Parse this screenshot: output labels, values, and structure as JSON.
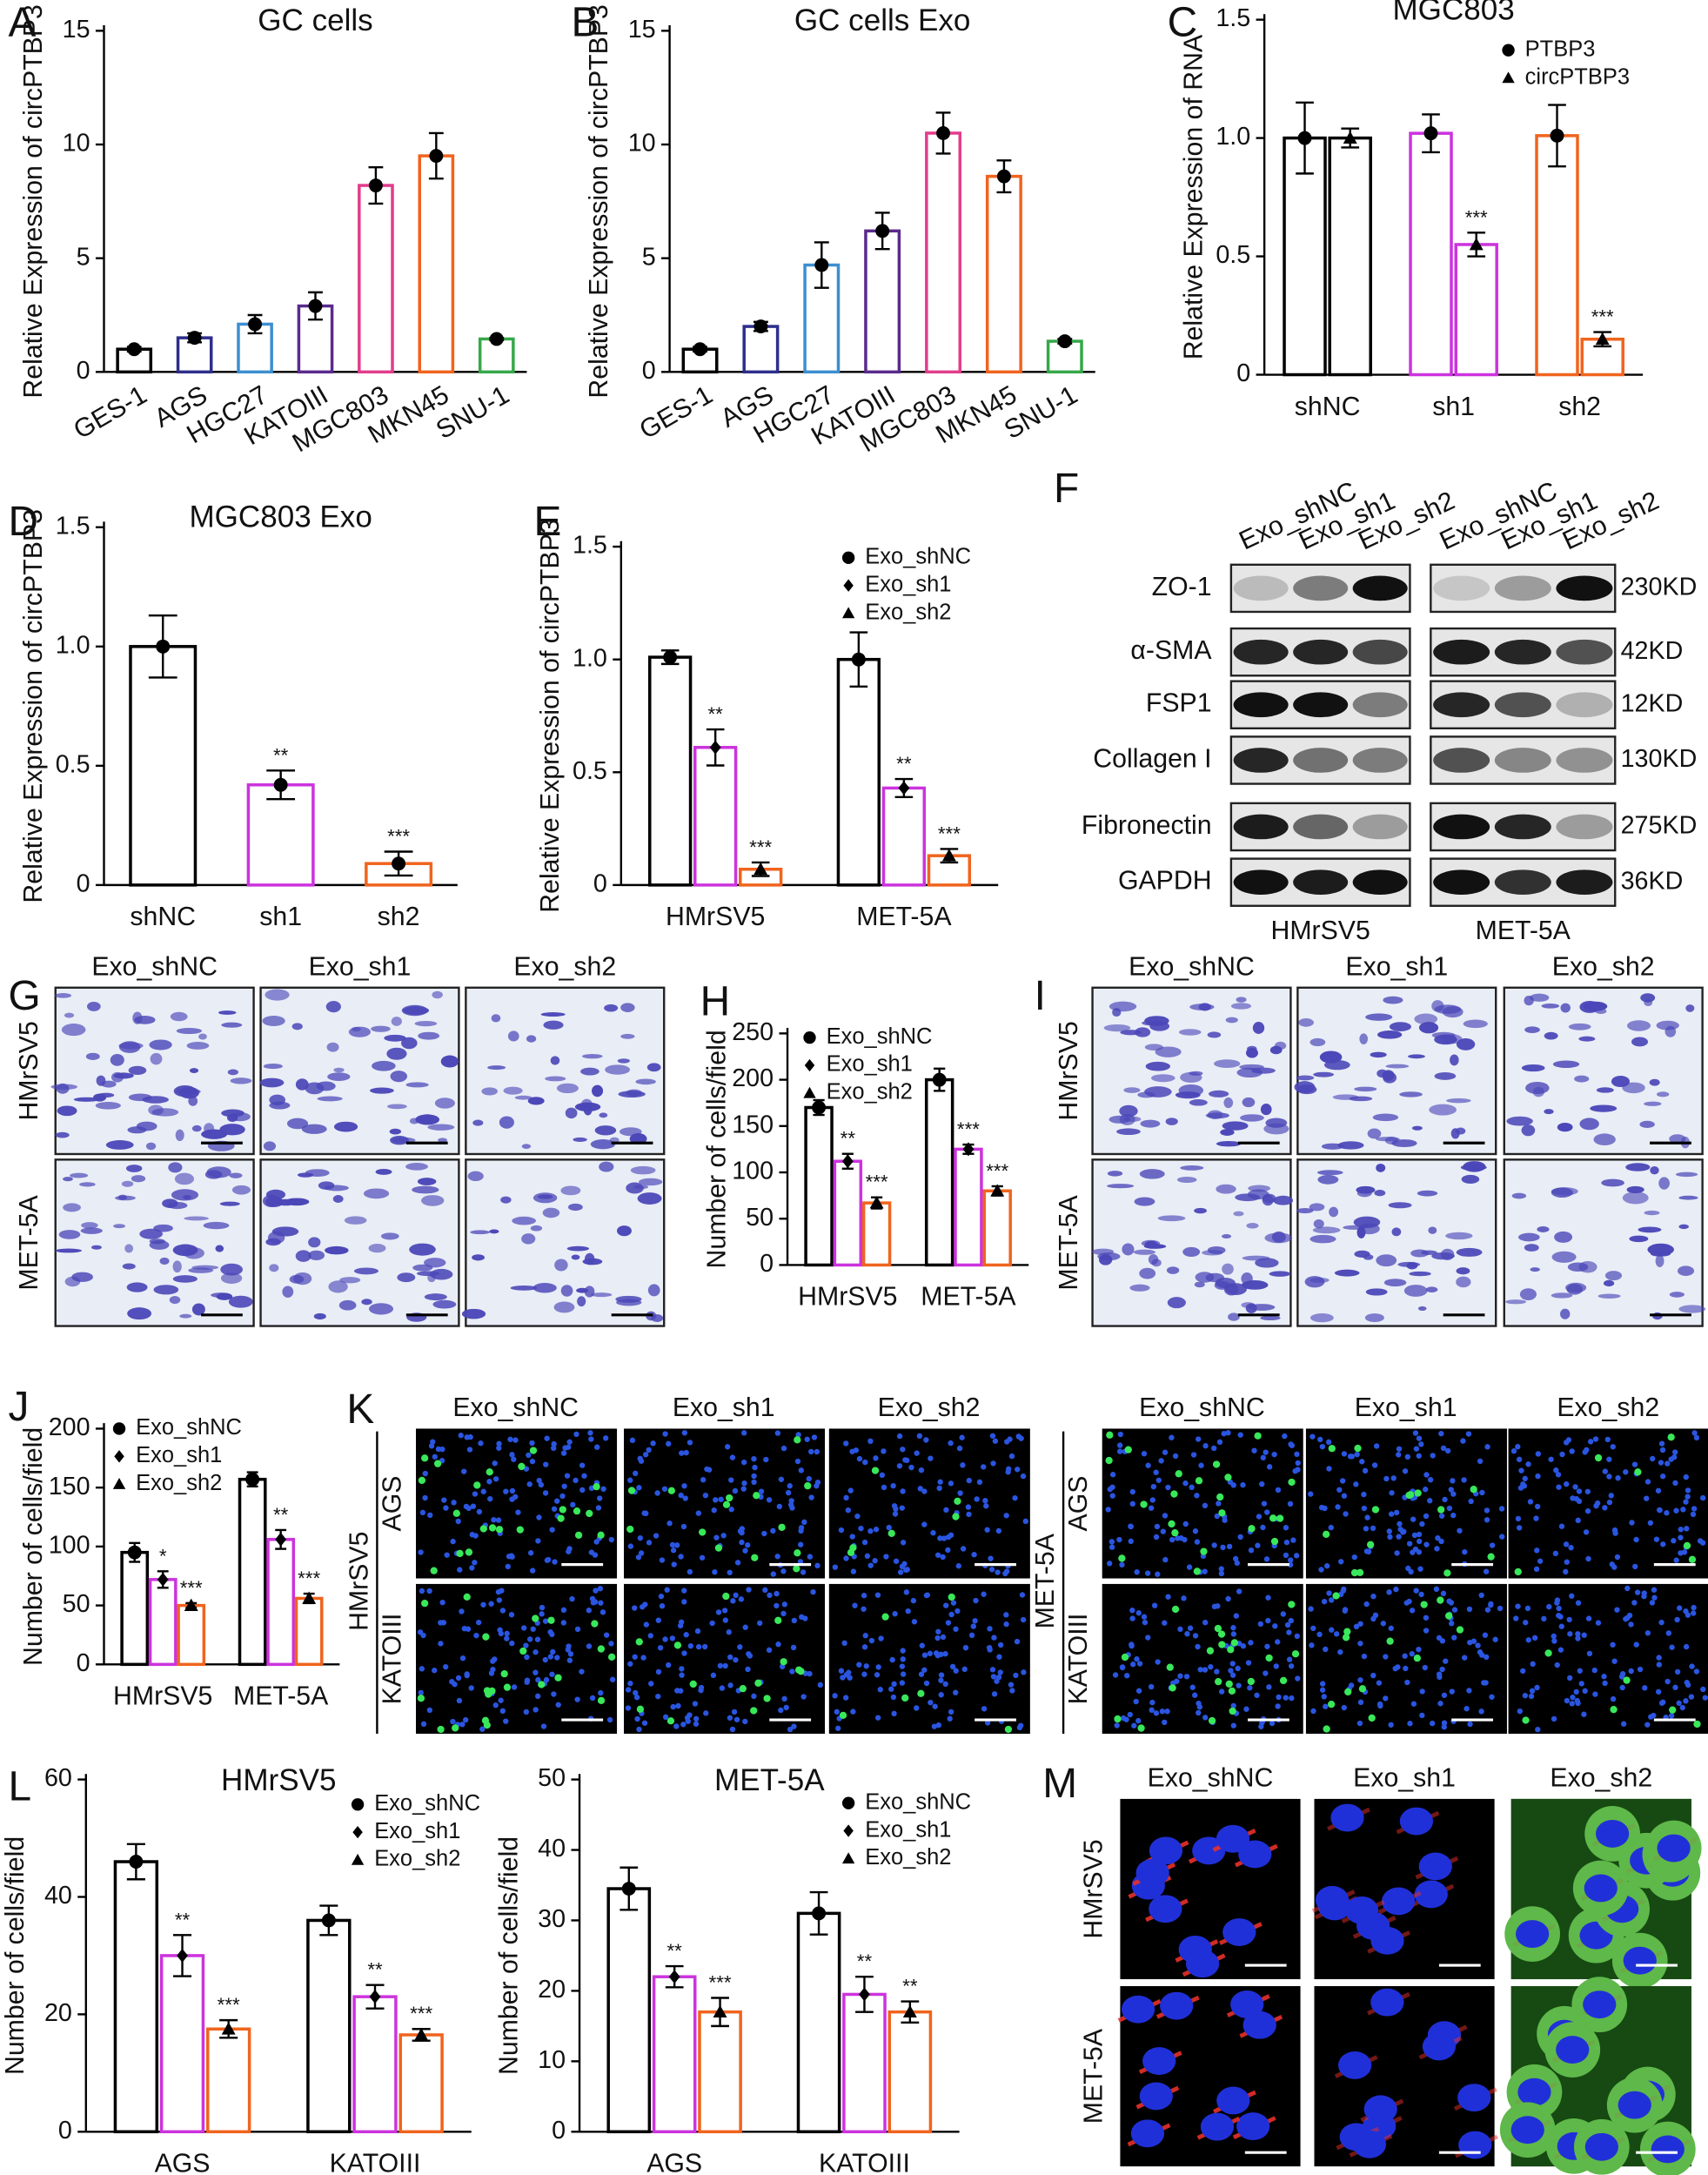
{
  "chart_data": [
    {
      "type": "bar",
      "panel": "A",
      "title": "GC cells",
      "ylabel": "Relative Expression of circPTBP3",
      "categories": [
        "GES-1",
        "AGS",
        "HGC27",
        "KATOIII",
        "MGC803",
        "MKN45",
        "SNU-1"
      ],
      "values": [
        1.0,
        1.5,
        2.1,
        2.9,
        8.2,
        9.5,
        1.45
      ],
      "errors": [
        0.1,
        0.2,
        0.4,
        0.6,
        0.8,
        1.0,
        0.05
      ],
      "colors": [
        "#000000",
        "#2e2e8c",
        "#3d8fd0",
        "#5a2a8c",
        "#e23d8c",
        "#f0641e",
        "#36a84a"
      ],
      "ylim": [
        0,
        15
      ],
      "yticks": [
        0,
        5,
        10,
        15
      ]
    },
    {
      "type": "bar",
      "panel": "B",
      "title": "GC cells Exo",
      "ylabel": "Relative Expression of circPTBP3",
      "categories": [
        "GES-1",
        "AGS",
        "HGC27",
        "KATOIII",
        "MGC803",
        "MKN45",
        "SNU-1"
      ],
      "values": [
        1.0,
        2.0,
        4.7,
        6.2,
        10.5,
        8.6,
        1.35
      ],
      "errors": [
        0.1,
        0.2,
        1.0,
        0.8,
        0.9,
        0.7,
        0.1
      ],
      "colors": [
        "#000000",
        "#2e2e8c",
        "#3d8fd0",
        "#5a2a8c",
        "#e23d8c",
        "#f0641e",
        "#36a84a"
      ],
      "ylim": [
        0,
        15
      ],
      "yticks": [
        0,
        5,
        10,
        15
      ]
    },
    {
      "type": "bar",
      "panel": "C",
      "title": "MGC803",
      "ylabel": "Relative Expression of RNA",
      "categories": [
        "shNC",
        "sh1",
        "sh2"
      ],
      "colors": [
        "#000000",
        "#cc33dd",
        "#f0641e"
      ],
      "series": [
        {
          "name": "PTBP3",
          "marker": "circle",
          "color": "#000000",
          "values": [
            1.0,
            1.02,
            1.01
          ],
          "errors": [
            0.15,
            0.08,
            0.13
          ],
          "significance": [
            null,
            null,
            null
          ]
        },
        {
          "name": "circPTBP3",
          "marker": "triangle",
          "color": "#000000",
          "values": [
            1.0,
            0.55,
            0.15
          ],
          "errors": [
            0.04,
            0.05,
            0.03
          ],
          "significance": [
            null,
            "***",
            "***"
          ]
        }
      ],
      "ylim": [
        0,
        1.5
      ],
      "yticks": [
        0,
        0.5,
        {
          "value": 1,
          "label": "1.0"
        },
        1.5
      ]
    },
    {
      "type": "bar",
      "panel": "D",
      "title": "MGC803 Exo",
      "ylabel": "Relative Expression of circPTBP3",
      "categories": [
        "shNC",
        "sh1",
        "sh2"
      ],
      "values": [
        1.0,
        0.42,
        0.09
      ],
      "errors": [
        0.13,
        0.06,
        0.05
      ],
      "significance": [
        null,
        "**",
        "***"
      ],
      "colors": [
        "#000000",
        "#cc33dd",
        "#f0641e"
      ],
      "ylim": [
        0,
        1.5
      ],
      "yticks": [
        0,
        0.5,
        {
          "value": 1,
          "label": "1.0"
        },
        1.5
      ]
    },
    {
      "type": "bar",
      "panel": "E",
      "ylabel": "Relative Expression of circPTBP3",
      "categories": [
        "HMrSV5",
        "MET-5A"
      ],
      "series": [
        {
          "name": "Exo_shNC",
          "marker": "circle",
          "color": "#000000",
          "values": [
            1.01,
            1.0
          ],
          "errors": [
            0.03,
            0.12
          ],
          "significance": [
            null,
            null
          ]
        },
        {
          "name": "Exo_sh1",
          "marker": "diamond",
          "color": "#cc33dd",
          "values": [
            0.61,
            0.43
          ],
          "errors": [
            0.08,
            0.04
          ],
          "significance": [
            "**",
            "**"
          ]
        },
        {
          "name": "Exo_sh2",
          "marker": "triangle",
          "color": "#f0641e",
          "values": [
            0.07,
            0.13
          ],
          "errors": [
            0.03,
            0.03
          ],
          "significance": [
            "***",
            "***"
          ]
        }
      ],
      "ylim": [
        0,
        1.5
      ],
      "yticks": [
        0,
        0.5,
        {
          "value": 1,
          "label": "1.0"
        },
        1.5
      ]
    },
    {
      "type": "bar",
      "panel": "H",
      "ylabel": "Number of cells/field",
      "categories": [
        "HMrSV5",
        "MET-5A"
      ],
      "series": [
        {
          "name": "Exo_shNC",
          "marker": "circle",
          "color": "#000000",
          "values": [
            170,
            200
          ],
          "errors": [
            8,
            12
          ],
          "significance": [
            null,
            null
          ]
        },
        {
          "name": "Exo_sh1",
          "marker": "diamond",
          "color": "#cc33dd",
          "values": [
            112,
            125
          ],
          "errors": [
            8,
            5
          ],
          "significance": [
            "**",
            "***"
          ]
        },
        {
          "name": "Exo_sh2",
          "marker": "triangle",
          "color": "#f0641e",
          "values": [
            67,
            80
          ],
          "errors": [
            6,
            5
          ],
          "significance": [
            "***",
            "***"
          ]
        }
      ],
      "ylim": [
        0,
        250
      ],
      "yticks": [
        0,
        50,
        100,
        150,
        200,
        250
      ]
    },
    {
      "type": "bar",
      "panel": "J",
      "ylabel": "Number of cells/field",
      "categories": [
        "HMrSV5",
        "MET-5A"
      ],
      "series": [
        {
          "name": "Exo_shNC",
          "marker": "circle",
          "color": "#000000",
          "values": [
            95,
            157
          ],
          "errors": [
            8,
            6
          ],
          "significance": [
            null,
            null
          ]
        },
        {
          "name": "Exo_sh1",
          "marker": "diamond",
          "color": "#cc33dd",
          "values": [
            72,
            106
          ],
          "errors": [
            7,
            8
          ],
          "significance": [
            "*",
            "**"
          ]
        },
        {
          "name": "Exo_sh2",
          "marker": "triangle",
          "color": "#f0641e",
          "values": [
            50,
            56
          ],
          "errors": [
            2,
            4
          ],
          "significance": [
            "***",
            "***"
          ]
        }
      ],
      "ylim": [
        0,
        200
      ],
      "yticks": [
        0,
        50,
        100,
        150,
        200
      ]
    },
    {
      "type": "bar",
      "panel": "L",
      "title": "HMrSV5",
      "ylabel": "Number of cells/field",
      "categories": [
        "AGS",
        "KATOIII"
      ],
      "series": [
        {
          "name": "Exo_shNC",
          "marker": "circle",
          "color": "#000000",
          "values": [
            46,
            36
          ],
          "errors": [
            3,
            2.5
          ],
          "significance": [
            null,
            null
          ]
        },
        {
          "name": "Exo_sh1",
          "marker": "diamond",
          "color": "#cc33dd",
          "values": [
            30,
            23
          ],
          "errors": [
            3.5,
            2
          ],
          "significance": [
            "**",
            "**"
          ]
        },
        {
          "name": "Exo_sh2",
          "marker": "triangle",
          "color": "#f0641e",
          "values": [
            17.5,
            16.5
          ],
          "errors": [
            1.5,
            1
          ],
          "significance": [
            "***",
            "***"
          ]
        }
      ],
      "ylim": [
        0,
        60
      ],
      "yticks": [
        0,
        20,
        40,
        60
      ]
    },
    {
      "type": "bar",
      "title": "MET-5A",
      "ylabel": "Number of cells/field",
      "categories": [
        "AGS",
        "KATOIII"
      ],
      "series": [
        {
          "name": "Exo_shNC",
          "marker": "circle",
          "color": "#000000",
          "values": [
            34.5,
            31
          ],
          "errors": [
            3,
            3
          ],
          "significance": [
            null,
            null
          ]
        },
        {
          "name": "Exo_sh1",
          "marker": "diamond",
          "color": "#cc33dd",
          "values": [
            22,
            19.5
          ],
          "errors": [
            1.5,
            2.5
          ],
          "significance": [
            "**",
            "**"
          ]
        },
        {
          "name": "Exo_sh2",
          "marker": "triangle",
          "color": "#f0641e",
          "values": [
            17,
            17
          ],
          "errors": [
            2,
            1.5
          ],
          "significance": [
            "***",
            "**"
          ]
        }
      ],
      "ylim": [
        0,
        50
      ],
      "yticks": [
        0,
        10,
        20,
        30,
        40,
        50
      ]
    }
  ],
  "blot": {
    "panel": "F",
    "lanes": [
      "Exo_shNC",
      "Exo_sh1",
      "Exo_sh2"
    ],
    "proteins": [
      "ZO-1",
      "α-SMA",
      "FSP1",
      "Collagen I",
      "Fibronectin",
      "GAPDH"
    ],
    "sizes": [
      "230KD",
      "42KD",
      "12KD",
      "130KD",
      "275KD",
      "36KD"
    ],
    "cell_lines": [
      "HMrSV5",
      "MET-5A"
    ]
  },
  "panel_G": {
    "panel": "G",
    "columns": [
      "Exo_shNC",
      "Exo_sh1",
      "Exo_sh2"
    ],
    "rows": [
      "HMrSV5",
      "MET-5A"
    ]
  },
  "panel_I": {
    "panel": "I",
    "columns": [
      "Exo_shNC",
      "Exo_sh1",
      "Exo_sh2"
    ],
    "rows": [
      "HMrSV5",
      "MET-5A"
    ]
  },
  "panel_K": {
    "panel": "K",
    "columns": [
      "Exo_shNC",
      "Exo_sh1",
      "Exo_sh2"
    ],
    "groups": [
      {
        "name": "HMrSV5",
        "rows": [
          "AGS",
          "KATOIII"
        ]
      },
      {
        "name": "MET-5A",
        "rows": [
          "AGS",
          "KATOIII"
        ]
      }
    ]
  },
  "panel_M": {
    "panel": "M",
    "columns": [
      "Exo_shNC",
      "Exo_sh1",
      "Exo_sh2"
    ],
    "rows": [
      "HMrSV5",
      "MET-5A"
    ]
  }
}
